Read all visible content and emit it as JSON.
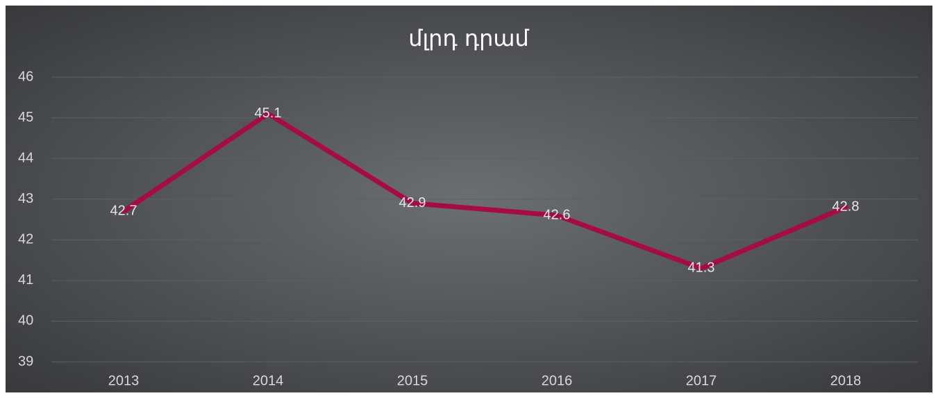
{
  "chart_data": {
    "type": "line",
    "title": "մլրդ դրամ",
    "categories": [
      "2013",
      "2014",
      "2015",
      "2016",
      "2017",
      "2018"
    ],
    "values": [
      42.7,
      45.1,
      42.9,
      42.6,
      41.3,
      42.8
    ],
    "color": "#a50d42",
    "ylim": [
      39,
      46
    ],
    "yticks": [
      39,
      40,
      41,
      42,
      43,
      44,
      45,
      46
    ],
    "grid": true
  }
}
